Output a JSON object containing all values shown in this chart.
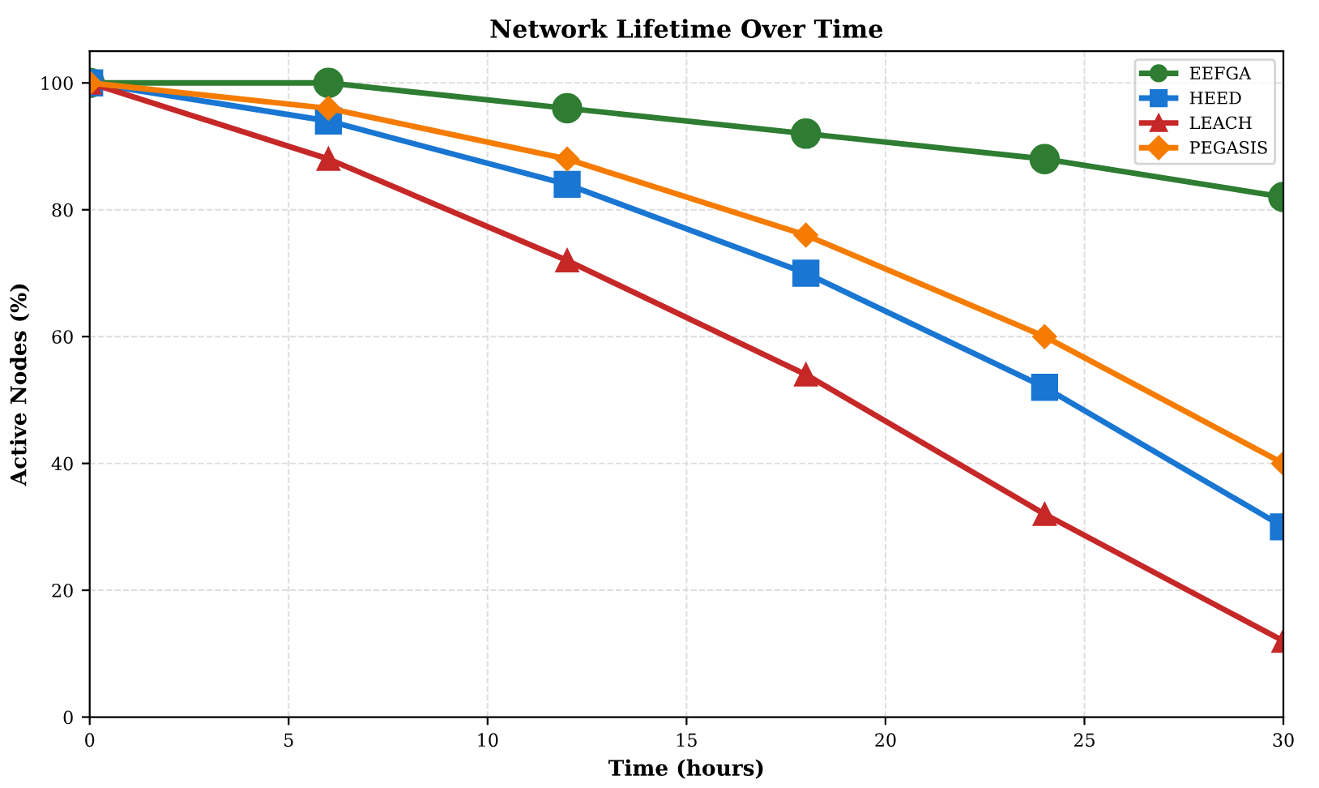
{
  "chart_data": {
    "type": "line",
    "title": "Network Lifetime Over Time",
    "xlabel": "Time (hours)",
    "ylabel": "Active Nodes (%)",
    "x": [
      0,
      6,
      12,
      18,
      24,
      30
    ],
    "series": [
      {
        "name": "EEFGA",
        "color": "#2e7d32",
        "marker": "circle",
        "values": [
          100,
          100,
          96,
          92,
          88,
          82
        ]
      },
      {
        "name": "HEED",
        "color": "#1976d2",
        "marker": "square",
        "values": [
          100,
          94,
          84,
          70,
          52,
          30
        ]
      },
      {
        "name": "LEACH",
        "color": "#c62828",
        "marker": "triangle",
        "values": [
          100,
          88,
          72,
          54,
          32,
          12
        ]
      },
      {
        "name": "PEGASIS",
        "color": "#f57c00",
        "marker": "diamond",
        "values": [
          100,
          96,
          88,
          76,
          60,
          40
        ]
      }
    ],
    "xlim": [
      0,
      30
    ],
    "ylim": [
      0,
      105
    ],
    "xticks": [
      0,
      5,
      10,
      15,
      20,
      25,
      30
    ],
    "yticks": [
      0,
      20,
      40,
      60,
      80,
      100
    ],
    "grid": true,
    "legend": "top right",
    "line_style": "solid"
  }
}
